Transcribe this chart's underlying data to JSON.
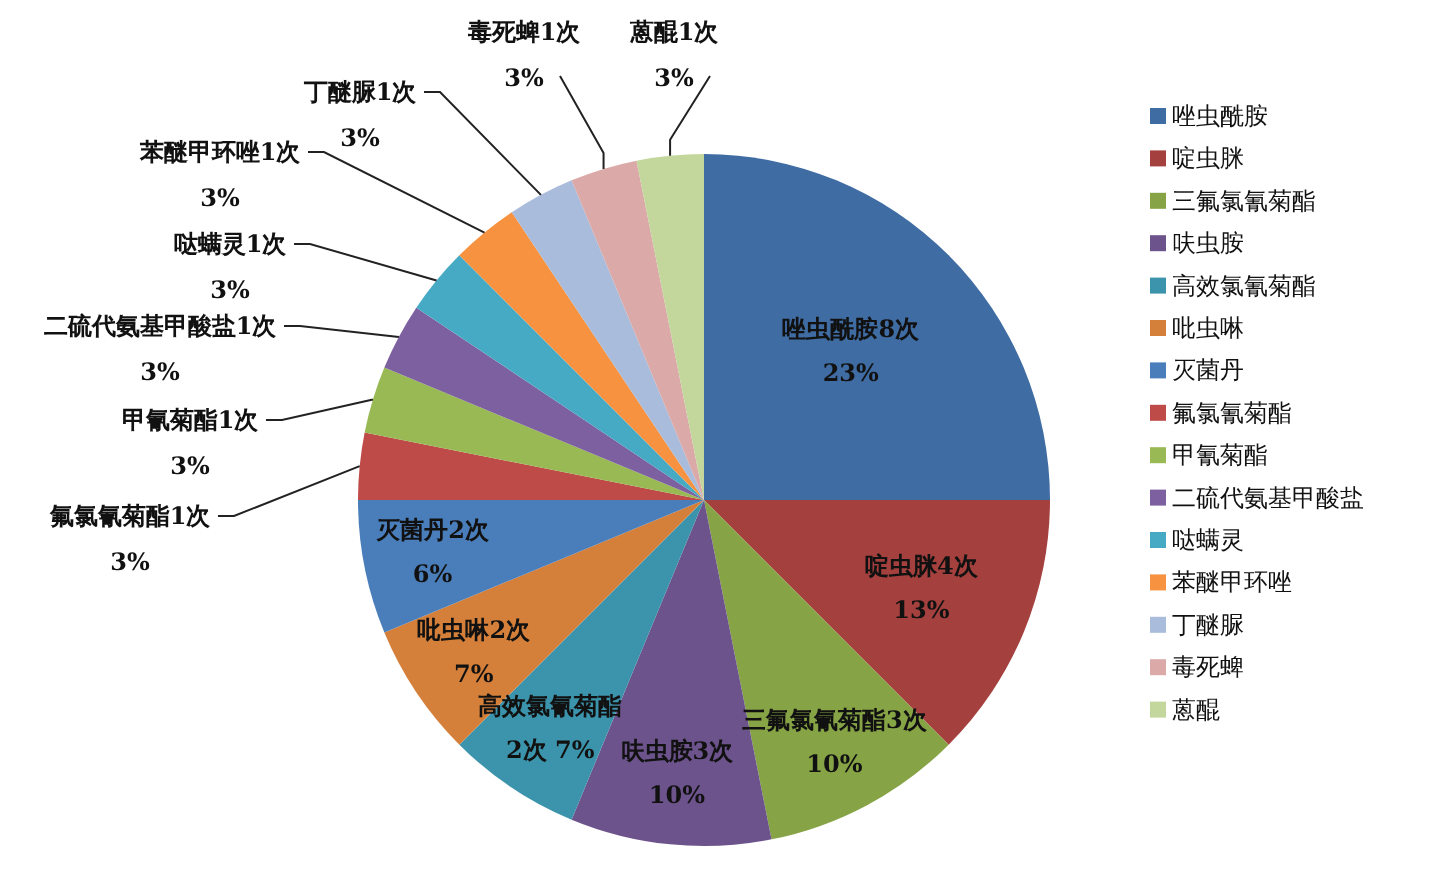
{
  "chart_data": {
    "type": "pie",
    "legend": "right",
    "categories": [
      "唑虫酰胺",
      "啶虫脒",
      "三氟氯氰菊酯",
      "呋虫胺",
      "高效氯氰菊酯",
      "吡虫啉",
      "灭菌丹",
      "氟氯氰菊酯",
      "甲氰菊酯",
      "二硫代氨基甲酸盐",
      "哒螨灵",
      "苯醚甲环唑",
      "丁醚脲",
      "毒死蜱",
      "蒽醌"
    ],
    "values": [
      8,
      4,
      3,
      3,
      2,
      2,
      2,
      1,
      1,
      1,
      1,
      1,
      1,
      1,
      1
    ],
    "value_labels": [
      "唑虫酰胺8次\n23%",
      "啶虫脒4次\n13%",
      "三氟氯氰菊酯3次\n10%",
      "呋虫胺3次\n10%",
      "高效氯氰菊酯\n2次  7%",
      "吡虫啉2次\n7%",
      "灭菌丹2次\n6%",
      "氟氯氰菊酯1次\n3%",
      "甲氰菊酯1次\n3%",
      "二硫代氨基甲酸盐1次\n3%",
      "哒螨灵1次\n3%",
      "苯醚甲环唑1次\n3%",
      "丁醚脲1次\n3%",
      "毒死蜱1次\n3%",
      "蒽醌1次\n3%"
    ],
    "colors": [
      "#3f6ca3",
      "#a4403d",
      "#86a345",
      "#6d538c",
      "#3c94ac",
      "#d5803a",
      "#4a7ebb",
      "#be4b48",
      "#98b954",
      "#7d60a0",
      "#46aac5",
      "#f69240",
      "#a9bcdb",
      "#dba9a8",
      "#c3d69b"
    ]
  }
}
